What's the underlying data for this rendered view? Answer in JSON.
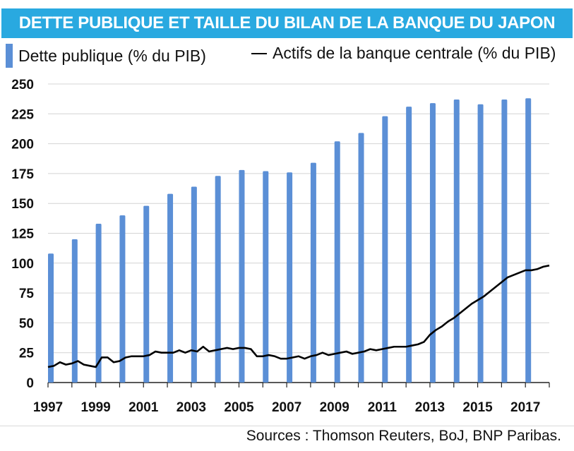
{
  "title": "DETTE PUBLIQUE ET TAILLE DU BILAN DE LA BANQUE DU JAPON",
  "source": "Sources : Thomson Reuters, BoJ, BNP Paribas.",
  "chart_data": {
    "type": "bar",
    "xlabel": "",
    "ylabel": "",
    "ylim": [
      0,
      250
    ],
    "xlim": [
      1997,
      2018
    ],
    "yticks": [
      "0",
      "25",
      "50",
      "75",
      "100",
      "125",
      "150",
      "175",
      "200",
      "225",
      "250"
    ],
    "xticks": [
      "1997",
      "1999",
      "2001",
      "2003",
      "2005",
      "2007",
      "2009",
      "2011",
      "2013",
      "2015",
      "2017"
    ],
    "grid": true,
    "legend_placement": "top",
    "colors": {
      "bars": "#5b8fd6",
      "line": "#000000",
      "title_band": "#29a9e0"
    },
    "series": [
      {
        "name": "Dette publique (% du PIB)",
        "type": "bar",
        "x": [
          1997,
          1998,
          1999,
          2000,
          2001,
          2002,
          2003,
          2004,
          2005,
          2006,
          2007,
          2008,
          2009,
          2010,
          2011,
          2012,
          2013,
          2014,
          2015,
          2016,
          2017
        ],
        "values": [
          108,
          120,
          133,
          140,
          148,
          158,
          164,
          173,
          178,
          177,
          176,
          184,
          202,
          209,
          223,
          231,
          234,
          237,
          233,
          237,
          238
        ]
      },
      {
        "name": "Actifs de la banque centrale (% du PIB)",
        "type": "line",
        "x": [
          1997.0,
          1997.25,
          1997.5,
          1997.75,
          1998.0,
          1998.25,
          1998.5,
          1998.75,
          1999.0,
          1999.25,
          1999.5,
          1999.75,
          2000.0,
          2000.25,
          2000.5,
          2000.75,
          2001.0,
          2001.25,
          2001.5,
          2001.75,
          2002.0,
          2002.25,
          2002.5,
          2002.75,
          2003.0,
          2003.25,
          2003.5,
          2003.75,
          2004.0,
          2004.25,
          2004.5,
          2004.75,
          2005.0,
          2005.25,
          2005.5,
          2005.75,
          2006.0,
          2006.25,
          2006.5,
          2006.75,
          2007.0,
          2007.25,
          2007.5,
          2007.75,
          2008.0,
          2008.25,
          2008.5,
          2008.75,
          2009.0,
          2009.25,
          2009.5,
          2009.75,
          2010.0,
          2010.25,
          2010.5,
          2010.75,
          2011.0,
          2011.25,
          2011.5,
          2011.75,
          2012.0,
          2012.25,
          2012.5,
          2012.75,
          2013.0,
          2013.25,
          2013.5,
          2013.75,
          2014.0,
          2014.25,
          2014.5,
          2014.75,
          2015.0,
          2015.25,
          2015.5,
          2015.75,
          2016.0,
          2016.25,
          2016.5,
          2016.75,
          2017.0,
          2017.25,
          2017.5,
          2017.75,
          2018.0
        ],
        "values": [
          13,
          14,
          17,
          15,
          16,
          18,
          15,
          14,
          13,
          21,
          21,
          17,
          18,
          21,
          22,
          22,
          22,
          23,
          26,
          25,
          25,
          25,
          27,
          25,
          27,
          26,
          30,
          26,
          27,
          28,
          29,
          28,
          29,
          29,
          28,
          22,
          22,
          23,
          22,
          20,
          20,
          21,
          22,
          20,
          22,
          23,
          25,
          23,
          24,
          25,
          26,
          24,
          25,
          26,
          28,
          27,
          28,
          29,
          30,
          30,
          30,
          31,
          32,
          34,
          40,
          44,
          47,
          51,
          54,
          58,
          62,
          66,
          69,
          72,
          76,
          80,
          84,
          88,
          90,
          92,
          94,
          94,
          95,
          97,
          98
        ]
      }
    ]
  }
}
